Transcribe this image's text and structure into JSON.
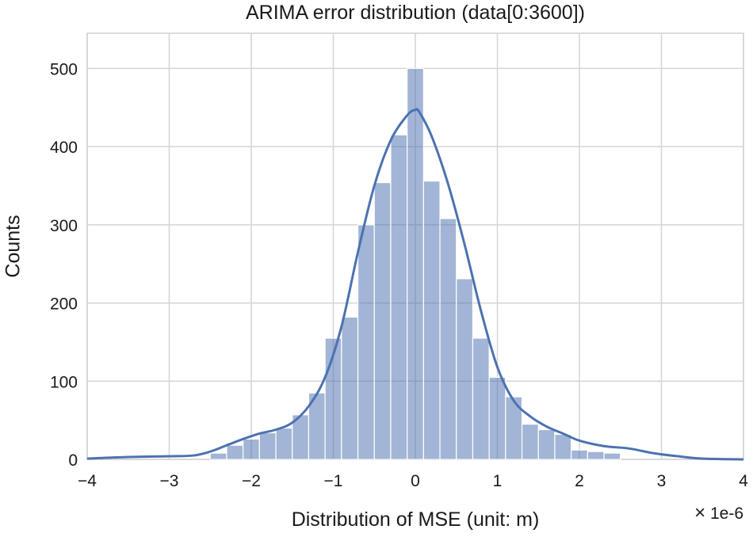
{
  "chart_data": {
    "type": "bar",
    "title": "ARIMA error distribution (data[0:3600])",
    "xlabel": "Distribution of MSE (unit: m)",
    "ylabel": "Counts",
    "x_offset_label": "1e-6",
    "x_offset_symbol": "×",
    "xlim": [
      -4,
      4
    ],
    "ylim": [
      0,
      545
    ],
    "xticks": [
      -4,
      -3,
      -2,
      -1,
      0,
      1,
      2,
      3,
      4
    ],
    "xtick_labels": [
      "−4",
      "−3",
      "−2",
      "−1",
      "0",
      "1",
      "2",
      "3",
      "4"
    ],
    "yticks": [
      0,
      100,
      200,
      300,
      400,
      500
    ],
    "grid": true,
    "bar_color": "#4c72b0",
    "line_color": "#4c72b0",
    "histogram": {
      "bin_edges": [
        -2.5,
        -2.3,
        -2.1,
        -1.9,
        -1.7,
        -1.5,
        -1.3,
        -1.1,
        -0.9,
        -0.7,
        -0.5,
        -0.3,
        -0.1,
        0.1,
        0.3,
        0.5,
        0.7,
        0.9,
        1.1,
        1.3,
        1.5,
        1.7,
        1.9,
        2.1,
        2.3,
        2.5
      ],
      "counts": [
        8,
        18,
        26,
        34,
        40,
        57,
        85,
        155,
        182,
        300,
        354,
        415,
        500,
        356,
        308,
        231,
        155,
        105,
        80,
        45,
        38,
        32,
        12,
        10,
        8
      ]
    },
    "kde": {
      "x": [
        -4,
        -3.5,
        -3.0,
        -2.7,
        -2.5,
        -2.3,
        -2.1,
        -1.9,
        -1.7,
        -1.5,
        -1.3,
        -1.1,
        -0.9,
        -0.7,
        -0.5,
        -0.3,
        -0.1,
        0.0,
        0.05,
        0.2,
        0.4,
        0.6,
        0.8,
        1.0,
        1.2,
        1.4,
        1.6,
        1.8,
        2.0,
        2.3,
        2.6,
        2.9,
        3.2,
        3.5,
        4.0
      ],
      "y": [
        1,
        3,
        4,
        5,
        10,
        18,
        26,
        33,
        38,
        47,
        68,
        105,
        170,
        265,
        350,
        408,
        440,
        447,
        444,
        413,
        352,
        275,
        190,
        118,
        75,
        55,
        42,
        33,
        24,
        17,
        14,
        8,
        4,
        1,
        0
      ]
    }
  }
}
